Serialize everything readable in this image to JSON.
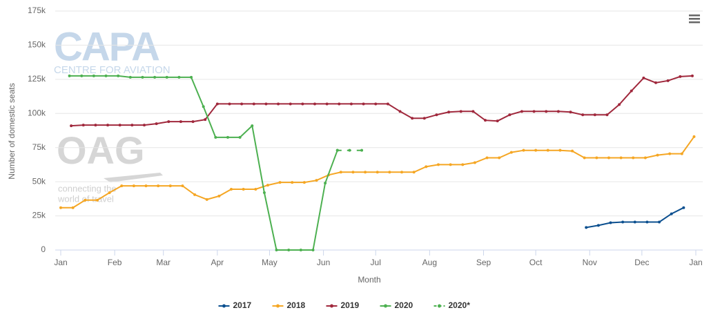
{
  "chart_data": {
    "type": "line",
    "x_label": "Month",
    "y_label": "Number of domestic seats",
    "watermark": {
      "capa": "CAPA",
      "capa_sub": "CENTRE FOR AVIATION",
      "oag": "OAG",
      "oag_sub_1": "connecting the",
      "oag_sub_2": "world of travel"
    },
    "xlim": [
      0,
      365
    ],
    "xticks": [
      {
        "value": 0,
        "label": "Jan"
      },
      {
        "value": 31,
        "label": "Feb"
      },
      {
        "value": 59,
        "label": "Mar"
      },
      {
        "value": 90,
        "label": "Apr"
      },
      {
        "value": 120,
        "label": "May"
      },
      {
        "value": 151,
        "label": "Jun"
      },
      {
        "value": 181,
        "label": "Jul"
      },
      {
        "value": 212,
        "label": "Aug"
      },
      {
        "value": 243,
        "label": "Sep"
      },
      {
        "value": 273,
        "label": "Oct"
      },
      {
        "value": 304,
        "label": "Nov"
      },
      {
        "value": 334,
        "label": "Dec"
      },
      {
        "value": 365,
        "label": "Jan"
      }
    ],
    "ylim": [
      0,
      175000
    ],
    "yticks": [
      0,
      {
        "value": 25000,
        "label": "25k"
      },
      {
        "value": 50000,
        "label": "50k"
      },
      {
        "value": 75000,
        "label": "75k"
      },
      {
        "value": 100000,
        "label": "100k"
      },
      {
        "value": 125000,
        "label": "125k"
      },
      {
        "value": 150000,
        "label": "150k"
      },
      {
        "value": 175000,
        "label": "175k"
      }
    ],
    "grid": true,
    "legend": "bottom",
    "series": [
      {
        "name": "2017",
        "color": "#0b4f8f",
        "dashed": false,
        "x": [
          302,
          309,
          316,
          323,
          330,
          337,
          344,
          351,
          358
        ],
        "values": [
          16500,
          18000,
          20000,
          20500,
          20500,
          20500,
          20500,
          26500,
          31000
        ]
      },
      {
        "name": "2018",
        "color": "#f5a623",
        "dashed": false,
        "x": [
          0,
          7,
          14,
          21,
          28,
          35,
          42,
          49,
          56,
          63,
          70,
          77,
          84,
          91,
          98,
          105,
          112,
          119,
          126,
          133,
          140,
          147,
          154,
          161,
          168,
          175,
          182,
          189,
          196,
          203,
          210,
          217,
          224,
          231,
          238,
          245,
          252,
          259,
          266,
          273,
          280,
          287,
          294,
          301,
          308,
          315,
          322,
          329,
          336,
          343,
          350,
          357,
          364
        ],
        "values": [
          31000,
          31000,
          36500,
          36500,
          42000,
          47000,
          47000,
          47000,
          47000,
          47000,
          47000,
          40500,
          37000,
          39500,
          44500,
          44500,
          44500,
          47500,
          49500,
          49500,
          49500,
          51000,
          55000,
          57000,
          57000,
          57000,
          57000,
          57000,
          57000,
          57000,
          61000,
          62500,
          62500,
          62500,
          64000,
          67500,
          67500,
          71500,
          73000,
          73000,
          73000,
          73000,
          72500,
          67500,
          67500,
          67500,
          67500,
          67500,
          67500,
          69500,
          70500,
          70500,
          83000
        ]
      },
      {
        "name": "2019",
        "color": "#a0283c",
        "dashed": false,
        "x": [
          6,
          13,
          20,
          27,
          34,
          41,
          48,
          55,
          62,
          69,
          76,
          83,
          90,
          97,
          104,
          111,
          118,
          125,
          132,
          139,
          146,
          153,
          160,
          167,
          174,
          181,
          188,
          195,
          202,
          209,
          216,
          223,
          230,
          237,
          244,
          251,
          258,
          265,
          272,
          279,
          286,
          293,
          300,
          307,
          314,
          321,
          328,
          335,
          342,
          349,
          356,
          363
        ],
        "values": [
          91000,
          91500,
          91500,
          91500,
          91500,
          91500,
          91500,
          92500,
          94000,
          94000,
          94000,
          95500,
          107000,
          107000,
          107000,
          107000,
          107000,
          107000,
          107000,
          107000,
          107000,
          107000,
          107000,
          107000,
          107000,
          107000,
          107000,
          101500,
          96500,
          96500,
          99000,
          101000,
          101500,
          101500,
          95000,
          94500,
          99000,
          101500,
          101500,
          101500,
          101500,
          101000,
          99000,
          99000,
          99000,
          106500,
          116500,
          126000,
          122500,
          124000,
          127000,
          127500
        ]
      },
      {
        "name": "2020",
        "color": "#4cb050",
        "dashed": false,
        "x": [
          5,
          12,
          19,
          26,
          33,
          40,
          47,
          54,
          61,
          68,
          75,
          82,
          89,
          96,
          103,
          110,
          117,
          124,
          131,
          138,
          145,
          152,
          159
        ],
        "values": [
          127500,
          127500,
          127500,
          127500,
          127500,
          126500,
          126500,
          126500,
          126500,
          126500,
          126500,
          105000,
          82500,
          82500,
          82500,
          91000,
          42000,
          0,
          0,
          0,
          0,
          49000,
          73000
        ]
      },
      {
        "name": "2020*",
        "color": "#4cb050",
        "dashed": true,
        "x": [
          159,
          166,
          173
        ],
        "values": [
          73000,
          73000,
          73000
        ]
      }
    ]
  }
}
